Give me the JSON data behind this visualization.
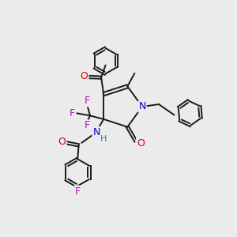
{
  "bg_color": "#ebebeb",
  "bond_color": "#1a1a1a",
  "bond_width": 1.4,
  "atom_colors": {
    "N": "#0000cc",
    "O": "#dd0000",
    "F": "#cc00cc",
    "H": "#228888",
    "C": "#1a1a1a"
  },
  "font_size": 8,
  "fig_size": [
    3.0,
    3.0
  ],
  "dpi": 100,
  "xlim": [
    0,
    10
  ],
  "ylim": [
    0,
    10
  ]
}
